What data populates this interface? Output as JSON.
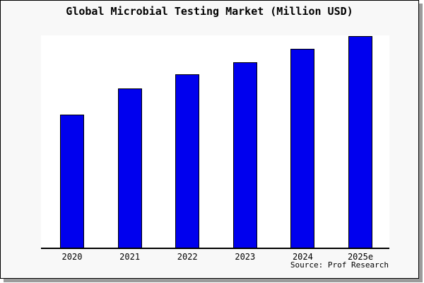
{
  "title": "Global Microbial Testing Market (Million USD)",
  "source": "Source: Prof Research",
  "colors": {
    "figure_background": "#f8f8f8",
    "plot_background": "#ffffff",
    "bar_fill": "#0000ee",
    "bar_edge": "#000000",
    "frame": "#000000",
    "shadow": "#9b9b9b",
    "text": "#000000"
  },
  "chart_data": {
    "type": "bar",
    "title": "Global Microbial Testing Market (Million USD)",
    "categories": [
      "2020",
      "2021",
      "2022",
      "2023",
      "2024",
      "2025e"
    ],
    "values_relative_to_max": [
      0.629,
      0.753,
      0.82,
      0.877,
      0.94,
      1.0
    ],
    "value_labels_shown": false,
    "y_axis_ticks_shown": false,
    "xlabel": "",
    "ylabel": "",
    "grid": false,
    "legend": false,
    "annotations": [
      "Source: Prof Research"
    ]
  }
}
